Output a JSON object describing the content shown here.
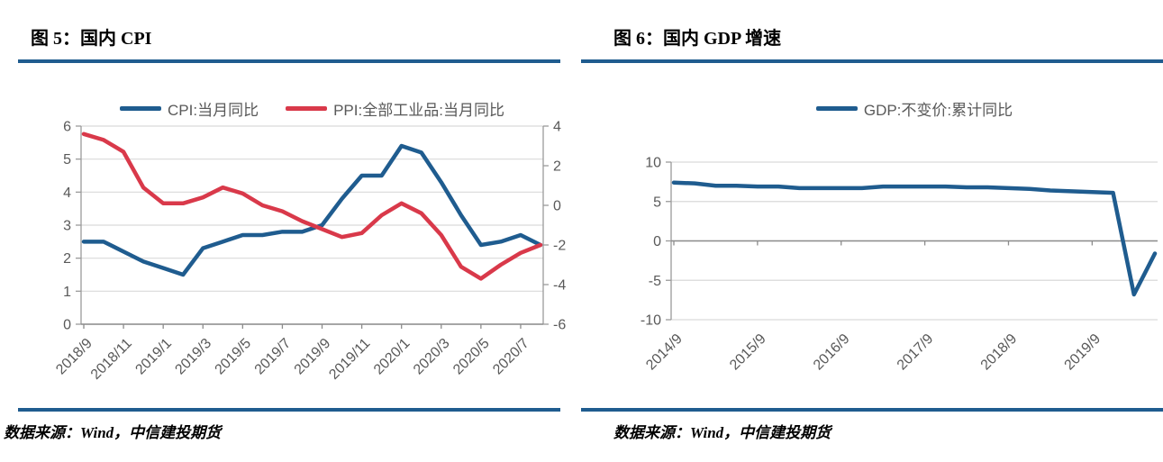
{
  "colors": {
    "rule_blue": "#1F5C8F",
    "line_blue": "#1F5C8F",
    "line_red": "#D9394A",
    "gridline": "#D9D9D9",
    "axis": "#9A9A9A",
    "zero_axis": "#8C8C8C",
    "tick_text": "#595959"
  },
  "left_panel": {
    "title": "图 5：国内 CPI",
    "source": "数据来源：Wind，中信建投期货"
  },
  "right_panel": {
    "title": "图 6：国内 GDP 增速",
    "source": "数据来源：Wind，中信建投期货"
  },
  "chart_data": [
    {
      "type": "line",
      "title": "图 5：国内 CPI",
      "grid": true,
      "legend_position": "top",
      "categories": [
        "2018/9",
        "2018/10",
        "2018/11",
        "2018/12",
        "2019/1",
        "2019/2",
        "2019/3",
        "2019/4",
        "2019/5",
        "2019/6",
        "2019/7",
        "2019/8",
        "2019/9",
        "2019/10",
        "2019/11",
        "2019/12",
        "2020/1",
        "2020/2",
        "2020/3",
        "2020/4",
        "2020/5",
        "2020/6",
        "2020/7",
        "2020/8"
      ],
      "x_tick_indices": [
        0,
        2,
        4,
        6,
        8,
        10,
        12,
        14,
        16,
        18,
        20,
        22
      ],
      "x_tick_labels": [
        "2018/9",
        "2018/11",
        "2019/1",
        "2019/3",
        "2019/5",
        "2019/7",
        "2019/9",
        "2019/11",
        "2020/1",
        "2020/3",
        "2020/5",
        "2020/7"
      ],
      "left_axis": {
        "min": 0,
        "max": 6,
        "step": 1,
        "ticks": [
          0,
          1,
          2,
          3,
          4,
          5,
          6
        ]
      },
      "right_axis": {
        "min": -6,
        "max": 4,
        "step": 2,
        "ticks": [
          -6,
          -4,
          -2,
          0,
          2,
          4
        ]
      },
      "series": [
        {
          "name": "CPI:当月同比",
          "axis": "left",
          "color": "#1F5C8F",
          "values": [
            2.5,
            2.5,
            2.2,
            1.9,
            1.7,
            1.5,
            2.3,
            2.5,
            2.7,
            2.7,
            2.8,
            2.8,
            3.0,
            3.8,
            4.5,
            4.5,
            5.4,
            5.2,
            4.3,
            3.3,
            2.4,
            2.5,
            2.7,
            2.4
          ]
        },
        {
          "name": "PPI:全部工业品:当月同比",
          "axis": "right",
          "color": "#D9394A",
          "values": [
            3.6,
            3.3,
            2.7,
            0.9,
            0.1,
            0.1,
            0.4,
            0.9,
            0.6,
            0.0,
            -0.3,
            -0.8,
            -1.2,
            -1.6,
            -1.4,
            -0.5,
            0.1,
            -0.4,
            -1.5,
            -3.1,
            -3.7,
            -3.0,
            -2.4,
            -2.0
          ]
        }
      ]
    },
    {
      "type": "line",
      "title": "图 6：国内 GDP 增速",
      "grid": true,
      "legend_position": "top",
      "categories": [
        "2014/9",
        "2014/12",
        "2015/3",
        "2015/6",
        "2015/9",
        "2015/12",
        "2016/3",
        "2016/6",
        "2016/9",
        "2016/12",
        "2017/3",
        "2017/6",
        "2017/9",
        "2017/12",
        "2018/3",
        "2018/6",
        "2018/9",
        "2018/12",
        "2019/3",
        "2019/6",
        "2019/9",
        "2019/12",
        "2020/3",
        "2020/6"
      ],
      "x_tick_indices": [
        0,
        4,
        8,
        12,
        16,
        20
      ],
      "x_tick_labels": [
        "2014/9",
        "2015/9",
        "2016/9",
        "2017/9",
        "2018/9",
        "2019/9"
      ],
      "left_axis": {
        "min": -10,
        "max": 10,
        "step": 5,
        "ticks": [
          -10,
          -5,
          0,
          5,
          10
        ]
      },
      "series": [
        {
          "name": "GDP:不变价:累计同比",
          "axis": "left",
          "color": "#1F5C8F",
          "values": [
            7.4,
            7.3,
            7.0,
            7.0,
            6.9,
            6.9,
            6.7,
            6.7,
            6.7,
            6.7,
            6.9,
            6.9,
            6.9,
            6.9,
            6.8,
            6.8,
            6.7,
            6.6,
            6.4,
            6.3,
            6.2,
            6.1,
            -6.8,
            -1.6
          ]
        }
      ]
    }
  ]
}
